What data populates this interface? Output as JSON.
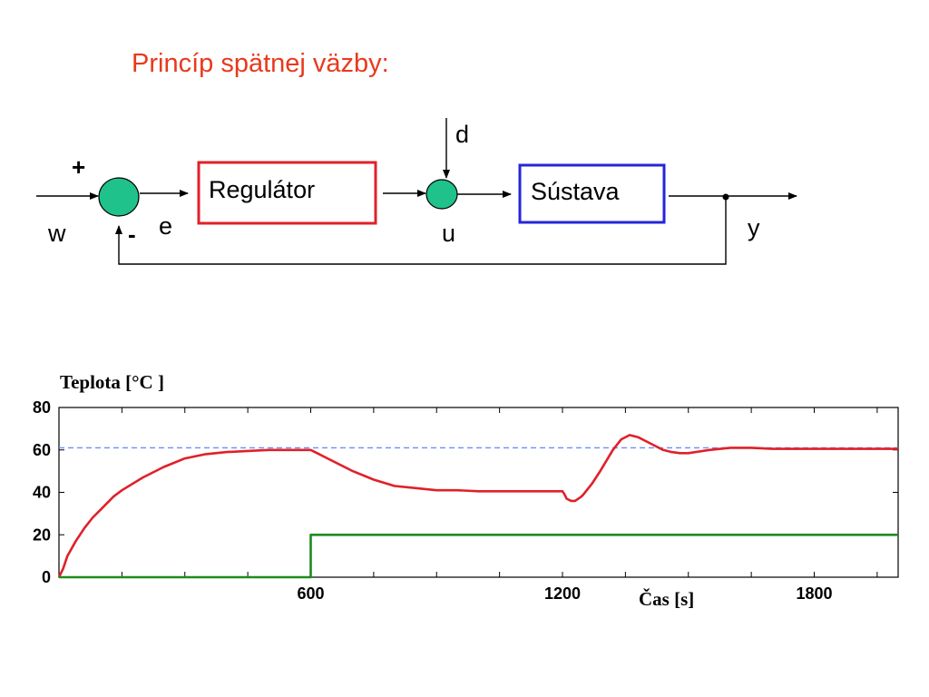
{
  "title": "Princíp spätnej väzby:",
  "diagram": {
    "blocks": {
      "regulator": "Regulátor",
      "sustava": "Sústava"
    },
    "signals": {
      "w": "w",
      "e": "e",
      "u": "u",
      "d": "d",
      "y": "y"
    },
    "signs": {
      "plus": "+",
      "minus": "-"
    },
    "colors": {
      "summing_junction": "#1fc28a",
      "regulator_border": "#e0202a",
      "sustava_border": "#2525d9"
    }
  },
  "chart_data": {
    "type": "line",
    "ylabel": "Teplota [°C ]",
    "xlabel": "Čas [s]",
    "xlim": [
      0,
      2000
    ],
    "ylim": [
      0,
      80
    ],
    "xticks": [
      "600",
      "1200",
      "1800"
    ],
    "yticks": [
      "0",
      "20",
      "40",
      "60",
      "80"
    ],
    "grid": false,
    "reference": {
      "y": 61,
      "style": "dashed",
      "color": "#6a8cff"
    },
    "series": [
      {
        "color": "#e0202a",
        "x": [
          0,
          10,
          20,
          40,
          60,
          80,
          100,
          130,
          150,
          200,
          250,
          300,
          350,
          400,
          450,
          500,
          550,
          600,
          620,
          640,
          700,
          750,
          800,
          850,
          900,
          950,
          1000,
          1050,
          1100,
          1150,
          1200,
          1205,
          1210,
          1220,
          1230,
          1245,
          1250,
          1270,
          1290,
          1320,
          1340,
          1360,
          1380,
          1400,
          1420,
          1440,
          1460,
          1480,
          1500,
          1550,
          1600,
          1650,
          1700,
          1750,
          1800,
          1900,
          2000
        ],
        "values": [
          0,
          4,
          10,
          17,
          23,
          28,
          32,
          38,
          41,
          47,
          52,
          56,
          58,
          59,
          59.5,
          60,
          60,
          60,
          58,
          56,
          50,
          46,
          43,
          42,
          41,
          41,
          40.5,
          40.5,
          40.5,
          40.5,
          40.5,
          39,
          37,
          36,
          36,
          38,
          39,
          44,
          50,
          60,
          65,
          67,
          66,
          64,
          62,
          60,
          59,
          58.5,
          58.5,
          60,
          61,
          61,
          60.5,
          60.5,
          60.5,
          60.5,
          60.5
        ]
      },
      {
        "color": "#1f8a1f",
        "x": [
          0,
          600,
          600,
          2000
        ],
        "values": [
          0,
          0,
          20,
          20
        ]
      }
    ]
  }
}
